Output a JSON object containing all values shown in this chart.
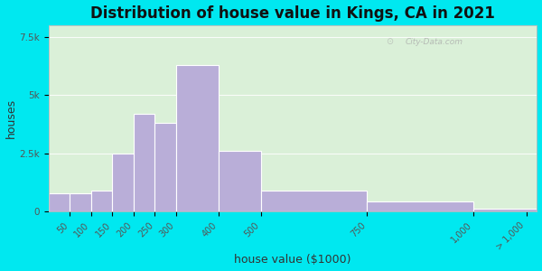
{
  "title": "Distribution of house value in Kings, CA in 2021",
  "xlabel": "house value ($1000)",
  "ylabel": "houses",
  "bin_edges": [
    0,
    50,
    100,
    150,
    200,
    250,
    300,
    400,
    500,
    750,
    1000,
    1150
  ],
  "bar_values": [
    800,
    800,
    900,
    2500,
    4200,
    3800,
    6300,
    2600,
    900,
    450,
    150
  ],
  "tick_positions": [
    50,
    100,
    150,
    200,
    250,
    300,
    400,
    500,
    750,
    1000,
    1125
  ],
  "tick_labels": [
    "50",
    "100",
    "150",
    "200",
    "250",
    "300",
    "400",
    "500",
    "750",
    "1,000",
    "> 1,000"
  ],
  "bar_color": "#b9aed8",
  "bar_edgecolor": "#ffffff",
  "background_outer": "#00e8f0",
  "background_inner": "#daf0d8",
  "ylim": [
    0,
    8000
  ],
  "yticks": [
    0,
    2500,
    5000,
    7500
  ],
  "ytick_labels": [
    "0",
    "2.5k",
    "5k",
    "7.5k"
  ],
  "title_fontsize": 12,
  "axis_label_fontsize": 9,
  "watermark_text": "City-Data.com"
}
